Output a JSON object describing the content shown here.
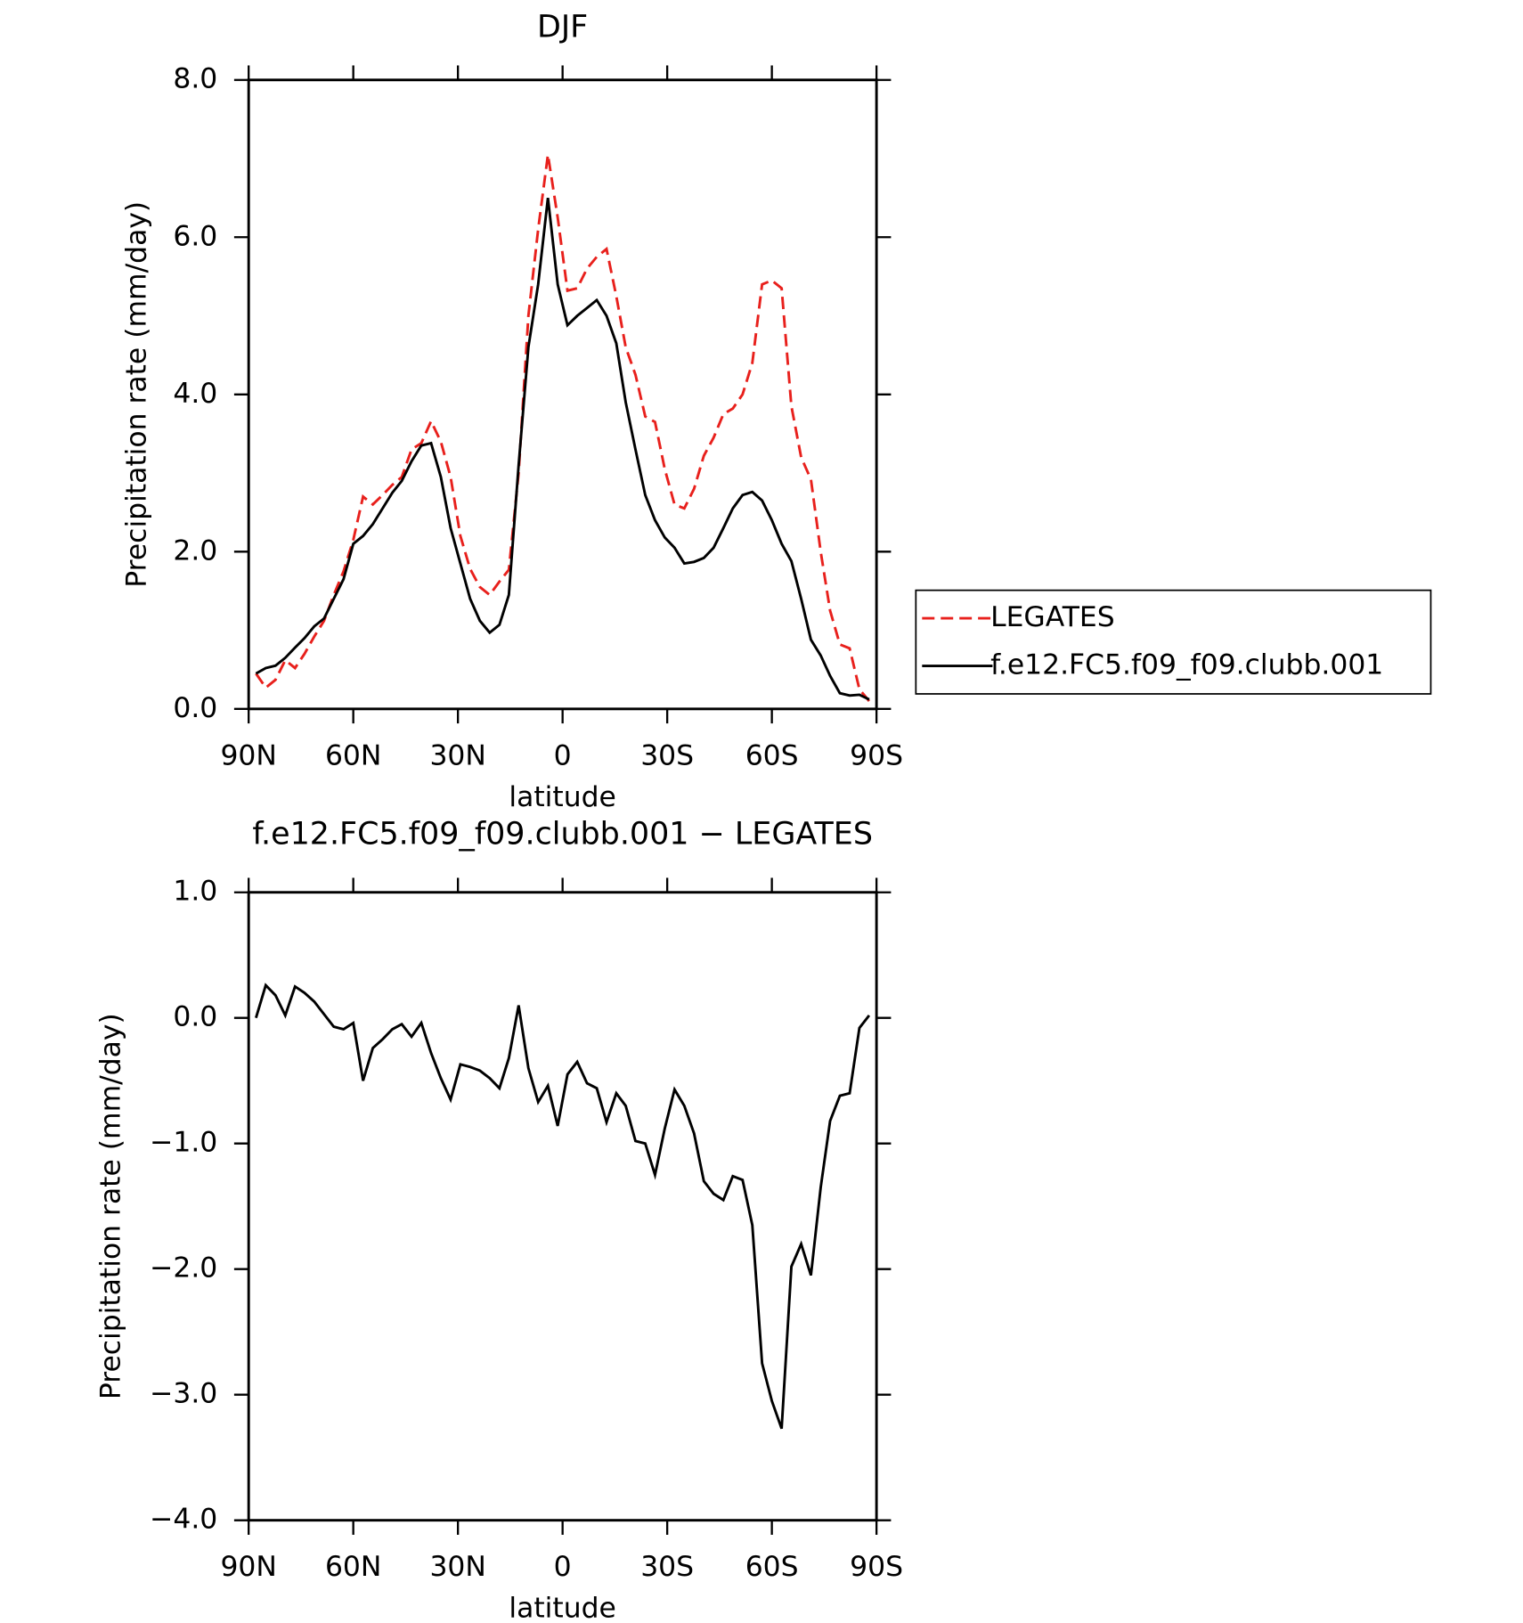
{
  "chart_data": [
    {
      "type": "line",
      "title": "DJF",
      "xlabel": "latitude",
      "ylabel": "Precipitation rate (mm/day)",
      "x": [
        87.9,
        85.1,
        82.3,
        79.5,
        76.7,
        74.0,
        71.2,
        68.4,
        65.6,
        62.8,
        60.0,
        57.2,
        54.4,
        51.6,
        48.8,
        46.1,
        43.3,
        40.5,
        37.7,
        34.9,
        32.1,
        29.3,
        26.5,
        23.7,
        20.9,
        18.1,
        15.4,
        12.6,
        9.8,
        7.0,
        4.2,
        1.4,
        -1.4,
        -4.2,
        -7.0,
        -9.8,
        -12.6,
        -15.4,
        -18.1,
        -20.9,
        -23.7,
        -26.5,
        -29.3,
        -32.1,
        -34.9,
        -37.7,
        -40.5,
        -43.3,
        -46.1,
        -48.8,
        -51.6,
        -54.4,
        -57.2,
        -60.0,
        -62.8,
        -65.6,
        -68.4,
        -71.2,
        -74.0,
        -76.7,
        -79.5,
        -82.3,
        -85.1,
        -87.9
      ],
      "xlim": [
        90,
        -90
      ],
      "xticks": [
        {
          "value": 90,
          "label": "90N"
        },
        {
          "value": 60,
          "label": "60N"
        },
        {
          "value": 30,
          "label": "30N"
        },
        0,
        {
          "value": -30,
          "label": "30S"
        },
        {
          "value": -60,
          "label": "60S"
        },
        {
          "value": -90,
          "label": "90S"
        }
      ],
      "ylim": [
        0,
        8
      ],
      "yticks": [
        {
          "value": 0,
          "label": "0.0"
        },
        {
          "value": 2,
          "label": "2.0"
        },
        {
          "value": 4,
          "label": "4.0"
        },
        {
          "value": 6,
          "label": "6.0"
        },
        {
          "value": 8,
          "label": "8.0"
        }
      ],
      "legend": "right",
      "series": [
        {
          "name": "LEGATES",
          "color": "#e8201c",
          "line_style": "dashed",
          "values": [
            0.45,
            0.27,
            0.37,
            0.62,
            0.52,
            0.7,
            0.92,
            1.12,
            1.45,
            1.75,
            2.15,
            2.7,
            2.6,
            2.72,
            2.85,
            2.95,
            3.3,
            3.38,
            3.66,
            3.4,
            2.95,
            2.2,
            1.78,
            1.55,
            1.45,
            1.62,
            1.77,
            3.0,
            5.0,
            6.1,
            7.05,
            6.25,
            5.32,
            5.35,
            5.6,
            5.75,
            5.85,
            5.25,
            4.6,
            4.25,
            3.72,
            3.65,
            3.05,
            2.6,
            2.55,
            2.8,
            3.22,
            3.45,
            3.75,
            3.82,
            4.0,
            4.4,
            5.4,
            5.45,
            5.35,
            3.85,
            3.2,
            2.92,
            2.0,
            1.25,
            0.82,
            0.77,
            0.25,
            0.1
          ]
        },
        {
          "name": "f.e12.FC5.f09_f09.clubb.001",
          "color": "#000000",
          "line_style": "solid",
          "values": [
            0.45,
            0.52,
            0.55,
            0.65,
            0.78,
            0.9,
            1.05,
            1.15,
            1.4,
            1.65,
            2.1,
            2.2,
            2.35,
            2.55,
            2.75,
            2.9,
            3.15,
            3.35,
            3.38,
            2.95,
            2.3,
            1.85,
            1.4,
            1.12,
            0.97,
            1.07,
            1.45,
            3.1,
            4.6,
            5.4,
            6.5,
            5.4,
            4.88,
            5.0,
            5.1,
            5.2,
            5.0,
            4.65,
            3.9,
            3.3,
            2.72,
            2.4,
            2.18,
            2.05,
            1.85,
            1.87,
            1.92,
            2.05,
            2.3,
            2.55,
            2.72,
            2.76,
            2.65,
            2.4,
            2.1,
            1.88,
            1.4,
            0.88,
            0.68,
            0.42,
            0.2,
            0.17,
            0.18,
            0.12
          ]
        }
      ]
    },
    {
      "type": "line",
      "title": "f.e12.FC5.f09_f09.clubb.001 − LEGATES",
      "xlabel": "latitude",
      "ylabel": "Precipitation rate (mm/day)",
      "x": [
        87.9,
        85.1,
        82.3,
        79.5,
        76.7,
        74.0,
        71.2,
        68.4,
        65.6,
        62.8,
        60.0,
        57.2,
        54.4,
        51.6,
        48.8,
        46.1,
        43.3,
        40.5,
        37.7,
        34.9,
        32.1,
        29.3,
        26.5,
        23.7,
        20.9,
        18.1,
        15.4,
        12.6,
        9.8,
        7.0,
        4.2,
        1.4,
        -1.4,
        -4.2,
        -7.0,
        -9.8,
        -12.6,
        -15.4,
        -18.1,
        -20.9,
        -23.7,
        -26.5,
        -29.3,
        -32.1,
        -34.9,
        -37.7,
        -40.5,
        -43.3,
        -46.1,
        -48.8,
        -51.6,
        -54.4,
        -57.2,
        -60.0,
        -62.8,
        -65.6,
        -68.4,
        -71.2,
        -74.0,
        -76.7,
        -79.5,
        -82.3,
        -85.1,
        -87.9
      ],
      "xlim": [
        90,
        -90
      ],
      "xticks": [
        {
          "value": 90,
          "label": "90N"
        },
        {
          "value": 60,
          "label": "60N"
        },
        {
          "value": 30,
          "label": "30N"
        },
        0,
        {
          "value": -30,
          "label": "30S"
        },
        {
          "value": -60,
          "label": "60S"
        },
        {
          "value": -90,
          "label": "90S"
        }
      ],
      "ylim": [
        -4,
        1
      ],
      "yticks": [
        {
          "value": -4,
          "label": "−4.0"
        },
        {
          "value": -3,
          "label": "−3.0"
        },
        {
          "value": -2,
          "label": "−2.0"
        },
        {
          "value": -1,
          "label": "−1.0"
        },
        {
          "value": 0,
          "label": "0.0"
        },
        {
          "value": 1,
          "label": "1.0"
        }
      ],
      "series": [
        {
          "color": "#000000",
          "line_style": "solid",
          "values": [
            0.0,
            0.26,
            0.18,
            0.02,
            0.25,
            0.2,
            0.13,
            0.03,
            -0.07,
            -0.09,
            -0.04,
            -0.5,
            -0.24,
            -0.17,
            -0.09,
            -0.05,
            -0.15,
            -0.04,
            -0.28,
            -0.48,
            -0.65,
            -0.37,
            -0.39,
            -0.42,
            -0.48,
            -0.56,
            -0.32,
            0.1,
            -0.4,
            -0.67,
            -0.54,
            -0.86,
            -0.45,
            -0.35,
            -0.52,
            -0.56,
            -0.83,
            -0.6,
            -0.7,
            -0.98,
            -1.0,
            -1.25,
            -0.88,
            -0.57,
            -0.7,
            -0.92,
            -1.3,
            -1.4,
            -1.45,
            -1.26,
            -1.29,
            -1.65,
            -2.75,
            -3.05,
            -3.27,
            -1.98,
            -1.8,
            -2.05,
            -1.35,
            -0.82,
            -0.62,
            -0.6,
            -0.08,
            0.02
          ]
        }
      ]
    }
  ]
}
